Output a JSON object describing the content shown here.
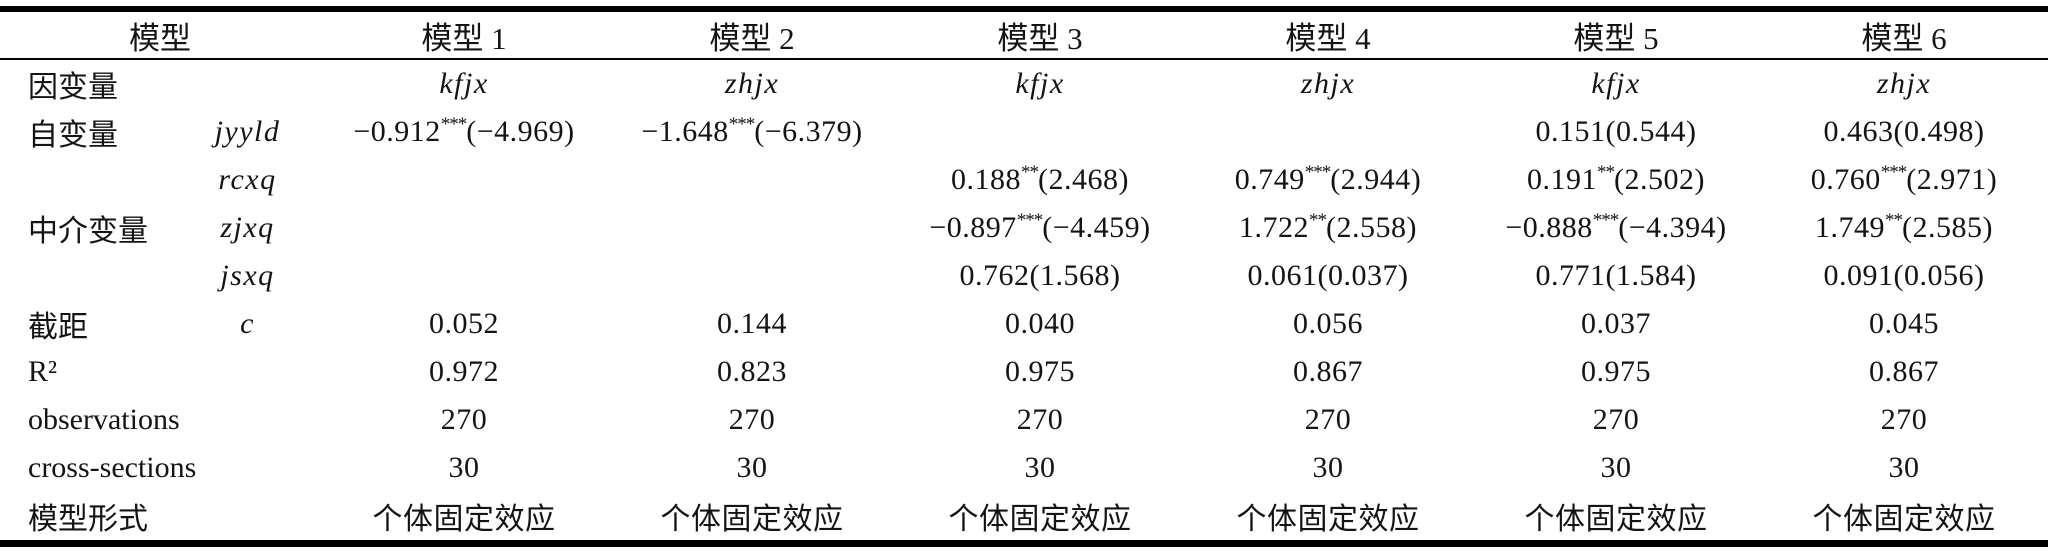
{
  "table": {
    "header": [
      "模型",
      "模型 1",
      "模型 2",
      "模型 3",
      "模型 4",
      "模型 5",
      "模型 6"
    ],
    "rows": [
      {
        "label": "因变量",
        "sub": "",
        "italic_cells": true,
        "cells": [
          "kfjx",
          "zhjx",
          "kfjx",
          "zhjx",
          "kfjx",
          "zhjx"
        ]
      },
      {
        "label": "自变量",
        "sub": "jyyld",
        "cells": [
          "−0.912***(−4.969)",
          "−1.648***(−6.379)",
          "",
          "",
          "0.151(0.544)",
          "0.463(0.498)"
        ]
      },
      {
        "label": "",
        "sub": "rcxq",
        "cells": [
          "",
          "",
          "0.188**(2.468)",
          "0.749***(2.944)",
          "0.191**(2.502)",
          "0.760***(2.971)"
        ]
      },
      {
        "label": "中介变量",
        "sub": "zjxq",
        "cells": [
          "",
          "",
          "−0.897***(−4.459)",
          "1.722**(2.558)",
          "−0.888***(−4.394)",
          "1.749**(2.585)"
        ]
      },
      {
        "label": "",
        "sub": "jsxq",
        "cells": [
          "",
          "",
          "0.762(1.568)",
          "0.061(0.037)",
          "0.771(1.584)",
          "0.091(0.056)"
        ]
      },
      {
        "label": "截距",
        "sub": "c",
        "cells": [
          "0.052",
          "0.144",
          "0.040",
          "0.056",
          "0.037",
          "0.045"
        ]
      },
      {
        "label": "R²",
        "sub": "",
        "cells": [
          "0.972",
          "0.823",
          "0.975",
          "0.867",
          "0.975",
          "0.867"
        ]
      },
      {
        "label": "observations",
        "sub": "",
        "cells": [
          "270",
          "270",
          "270",
          "270",
          "270",
          "270"
        ]
      },
      {
        "label": "cross-sections",
        "sub": "",
        "cells": [
          "30",
          "30",
          "30",
          "30",
          "30",
          "30"
        ]
      },
      {
        "label": "模型形式",
        "sub": "",
        "cells": [
          "个体固定效应",
          "个体固定效应",
          "个体固定效应",
          "个体固定效应",
          "个体固定效应",
          "个体固定效应"
        ]
      }
    ]
  },
  "colors": {
    "text": "#141414",
    "rule": "#000000",
    "background": "#ffffff"
  }
}
